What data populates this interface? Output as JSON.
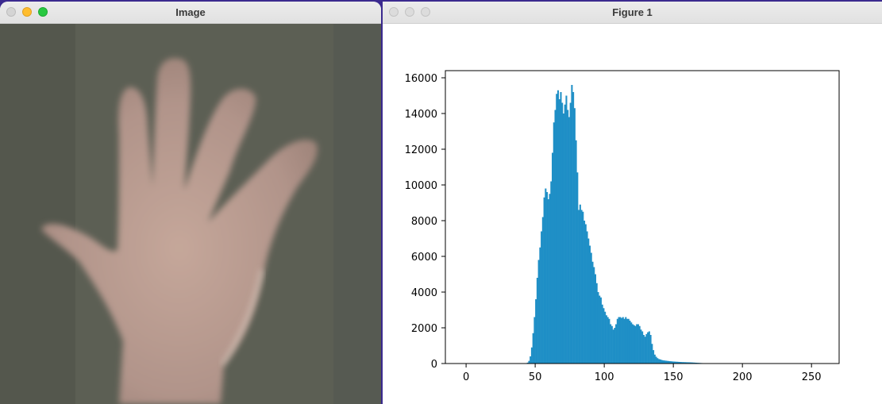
{
  "image_window": {
    "title": "Image",
    "photo_description_icon": "hand-photo"
  },
  "figure_window": {
    "title": "Figure 1"
  },
  "colors": {
    "bar": "#1f8fc6",
    "axis": "#000000"
  },
  "chart_data": {
    "type": "bar",
    "title": "",
    "xlabel": "",
    "ylabel": "",
    "xlim": [
      -15,
      270
    ],
    "ylim": [
      0,
      16400
    ],
    "x_ticks": [
      0,
      50,
      100,
      150,
      200,
      250
    ],
    "y_ticks": [
      0,
      2000,
      4000,
      6000,
      8000,
      10000,
      12000,
      14000,
      16000
    ],
    "x_tick_labels": [
      "0",
      "50",
      "100",
      "150",
      "200",
      "250"
    ],
    "y_tick_labels": [
      "0",
      "2000",
      "4000",
      "6000",
      "8000",
      "10000",
      "12000",
      "14000",
      "16000"
    ],
    "bins_start": 44,
    "bin_width": 1,
    "values": [
      50,
      150,
      400,
      900,
      1700,
      2600,
      3600,
      4800,
      5800,
      6500,
      7400,
      8200,
      9300,
      9800,
      9600,
      9200,
      9500,
      10200,
      11800,
      13500,
      14200,
      15100,
      15300,
      14800,
      15200,
      14600,
      14000,
      14500,
      15000,
      14200,
      13800,
      14600,
      15600,
      15200,
      14300,
      12500,
      10700,
      8600,
      8900,
      8600,
      8500,
      8000,
      7800,
      7400,
      7000,
      6600,
      6200,
      5700,
      5400,
      5000,
      4500,
      4000,
      3800,
      3700,
      3300,
      3100,
      2900,
      2700,
      2600,
      2500,
      2200,
      2100,
      1900,
      2000,
      2200,
      2500,
      2600,
      2600,
      2550,
      2600,
      2500,
      2600,
      2500,
      2500,
      2400,
      2300,
      2200,
      2150,
      2100,
      2200,
      2200,
      2100,
      1900,
      1800,
      1600,
      1500,
      1650,
      1750,
      1800,
      1600,
      1100,
      750,
      500,
      380,
      300,
      250,
      230,
      200,
      180,
      170,
      160,
      150,
      140,
      130,
      125,
      115,
      110,
      105,
      100,
      95,
      90,
      85,
      80,
      78,
      75,
      72,
      70,
      68,
      65,
      60,
      55,
      50,
      45,
      40,
      35,
      30,
      25,
      22,
      20,
      18,
      15,
      12,
      10,
      8,
      6,
      5,
      4,
      3,
      2,
      2,
      1,
      1,
      1,
      1,
      0,
      0,
      0,
      0,
      0,
      0
    ]
  }
}
